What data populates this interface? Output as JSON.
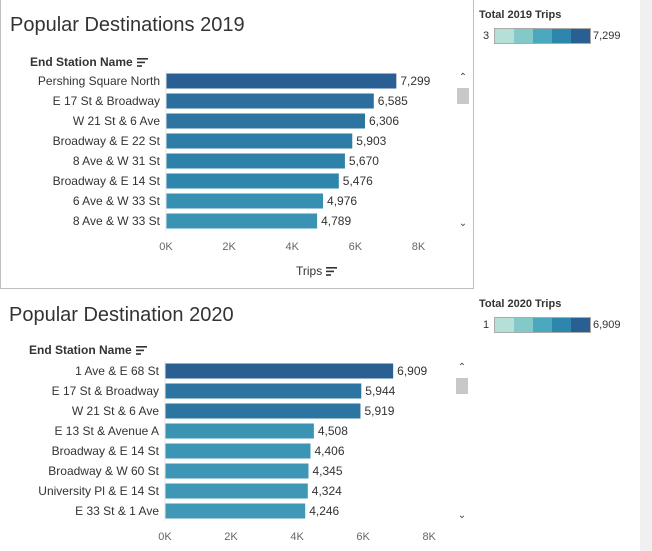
{
  "colors": {
    "ramp": [
      "#b5e0d8",
      "#84c8c8",
      "#4ba8bf",
      "#2f86ac",
      "#2a5f93"
    ],
    "text": "#333333",
    "axis": "#999999"
  },
  "chart_data": [
    {
      "type": "bar",
      "orientation": "horizontal",
      "title": "Popular Destinations 2019",
      "category_header": "End Station Name",
      "xlabel": "Trips",
      "categories": [
        "Pershing Square North",
        "E 17 St & Broadway",
        "W 21 St & 6 Ave",
        "Broadway & E 22 St",
        "8 Ave & W 31 St",
        "Broadway & E 14 St",
        "6 Ave & W 33 St",
        "8 Ave & W 33 St"
      ],
      "values": [
        7299,
        6585,
        6306,
        5903,
        5670,
        5476,
        4976,
        4789
      ],
      "value_labels": [
        "7,299",
        "6,585",
        "6,306",
        "5,903",
        "5,670",
        "5,476",
        "4,976",
        "4,789"
      ],
      "xlim": [
        0,
        9000
      ],
      "xticks": [
        0,
        2000,
        4000,
        6000,
        8000
      ],
      "xtick_labels": [
        "0K",
        "2K",
        "4K",
        "6K",
        "8K"
      ],
      "color_min": 3,
      "color_max": 7299,
      "legend": {
        "title": "Total 2019 Trips",
        "min_label": "3",
        "max_label": "7,299",
        "position": "top-right"
      },
      "grid": false
    },
    {
      "type": "bar",
      "orientation": "horizontal",
      "title": "Popular Destination 2020",
      "category_header": "End Station Name",
      "xlabel": "",
      "categories": [
        "1 Ave & E 68 St",
        "E 17 St & Broadway",
        "W 21 St & 6 Ave",
        "E 13 St & Avenue A",
        "Broadway & E 14 St",
        "Broadway & W 60 St",
        "University Pl & E 14 St",
        "E 33 St & 1 Ave"
      ],
      "values": [
        6909,
        5944,
        5919,
        4508,
        4406,
        4345,
        4324,
        4246
      ],
      "value_labels": [
        "6,909",
        "5,944",
        "5,919",
        "4,508",
        "4,406",
        "4,345",
        "4,324",
        "4,246"
      ],
      "xlim": [
        0,
        8600
      ],
      "xticks": [
        0,
        2000,
        4000,
        6000,
        8000
      ],
      "xtick_labels": [
        "0K",
        "2K",
        "4K",
        "6K",
        "8K"
      ],
      "color_min": 1,
      "color_max": 6909,
      "legend": {
        "title": "Total 2020 Trips",
        "min_label": "1",
        "max_label": "6,909",
        "position": "top-right"
      },
      "grid": false
    }
  ]
}
